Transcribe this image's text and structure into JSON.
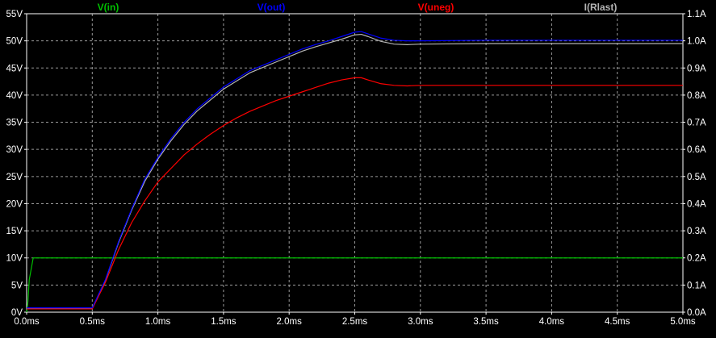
{
  "chart_data": {
    "type": "line",
    "x_ticks": [
      "0.0ms",
      "0.5ms",
      "1.0ms",
      "1.5ms",
      "2.0ms",
      "2.5ms",
      "3.0ms",
      "3.5ms",
      "4.0ms",
      "4.5ms",
      "5.0ms"
    ],
    "y_left_ticks": [
      "0V",
      "5V",
      "10V",
      "15V",
      "20V",
      "25V",
      "30V",
      "35V",
      "40V",
      "45V",
      "50V",
      "55V"
    ],
    "y_right_ticks": [
      "0.0A",
      "0.1A",
      "0.2A",
      "0.3A",
      "0.4A",
      "0.5A",
      "0.6A",
      "0.7A",
      "0.8A",
      "0.9A",
      "1.0A",
      "1.1A"
    ],
    "xlim": [
      0,
      5
    ],
    "ylim_left": [
      0,
      55
    ],
    "ylim_right": [
      0,
      1.1
    ],
    "grid": true,
    "series": [
      {
        "name": "V(in)",
        "color": "#00c000",
        "axis": "left",
        "x": [
          0,
          0.01,
          0.02,
          0.05,
          5.0
        ],
        "y": [
          0,
          2,
          6,
          10,
          10
        ]
      },
      {
        "name": "V(out)",
        "color": "#0000ff",
        "axis": "left",
        "x": [
          0,
          0.5,
          0.6,
          0.7,
          0.8,
          0.9,
          1.0,
          1.1,
          1.2,
          1.3,
          1.4,
          1.5,
          1.6,
          1.7,
          1.8,
          1.9,
          2.0,
          2.1,
          2.2,
          2.3,
          2.4,
          2.5,
          2.55,
          2.6,
          2.7,
          2.8,
          2.9,
          3.0,
          3.5,
          4.0,
          4.5,
          5.0
        ],
        "y": [
          0.8,
          0.8,
          6,
          13,
          19,
          24.5,
          28.5,
          32,
          35,
          37.5,
          39.5,
          41.5,
          43,
          44.5,
          45.5,
          46.5,
          47.5,
          48.5,
          49.3,
          50,
          50.8,
          51.6,
          51.7,
          51.3,
          50.5,
          50.1,
          50,
          50,
          50.1,
          50.1,
          50.1,
          50.1
        ]
      },
      {
        "name": "V(uneg)",
        "color": "#ff0000",
        "axis": "left",
        "x": [
          0,
          0.5,
          0.6,
          0.7,
          0.8,
          0.9,
          1.0,
          1.1,
          1.2,
          1.3,
          1.4,
          1.5,
          1.6,
          1.7,
          1.8,
          1.9,
          2.0,
          2.1,
          2.2,
          2.3,
          2.4,
          2.5,
          2.55,
          2.6,
          2.7,
          2.8,
          2.9,
          3.0,
          3.5,
          4.0,
          4.5,
          5.0
        ],
        "y": [
          0.6,
          0.6,
          5.5,
          11.5,
          16.5,
          20.5,
          24,
          26.5,
          29,
          31,
          32.8,
          34.4,
          35.8,
          37,
          38,
          39,
          39.8,
          40.6,
          41.4,
          42.2,
          42.8,
          43.2,
          43.2,
          42.8,
          42.1,
          41.8,
          41.7,
          41.8,
          41.8,
          41.8,
          41.8,
          41.8
        ]
      },
      {
        "name": "I(Rlast)",
        "color": "#b4b4b4",
        "axis": "right",
        "x": [
          0,
          0.5,
          0.6,
          0.7,
          0.8,
          0.9,
          1.0,
          1.1,
          1.2,
          1.3,
          1.4,
          1.5,
          1.6,
          1.7,
          1.8,
          1.9,
          2.0,
          2.1,
          2.2,
          2.3,
          2.4,
          2.5,
          2.55,
          2.6,
          2.7,
          2.8,
          2.9,
          3.0,
          3.5,
          4.0,
          4.5,
          5.0
        ],
        "y": [
          0.014,
          0.014,
          0.118,
          0.256,
          0.376,
          0.482,
          0.564,
          0.632,
          0.692,
          0.742,
          0.782,
          0.822,
          0.852,
          0.882,
          0.902,
          0.922,
          0.942,
          0.962,
          0.978,
          0.992,
          1.006,
          1.022,
          1.024,
          1.016,
          0.998,
          0.988,
          0.986,
          0.988,
          0.99,
          0.99,
          0.99,
          0.99
        ]
      }
    ]
  }
}
